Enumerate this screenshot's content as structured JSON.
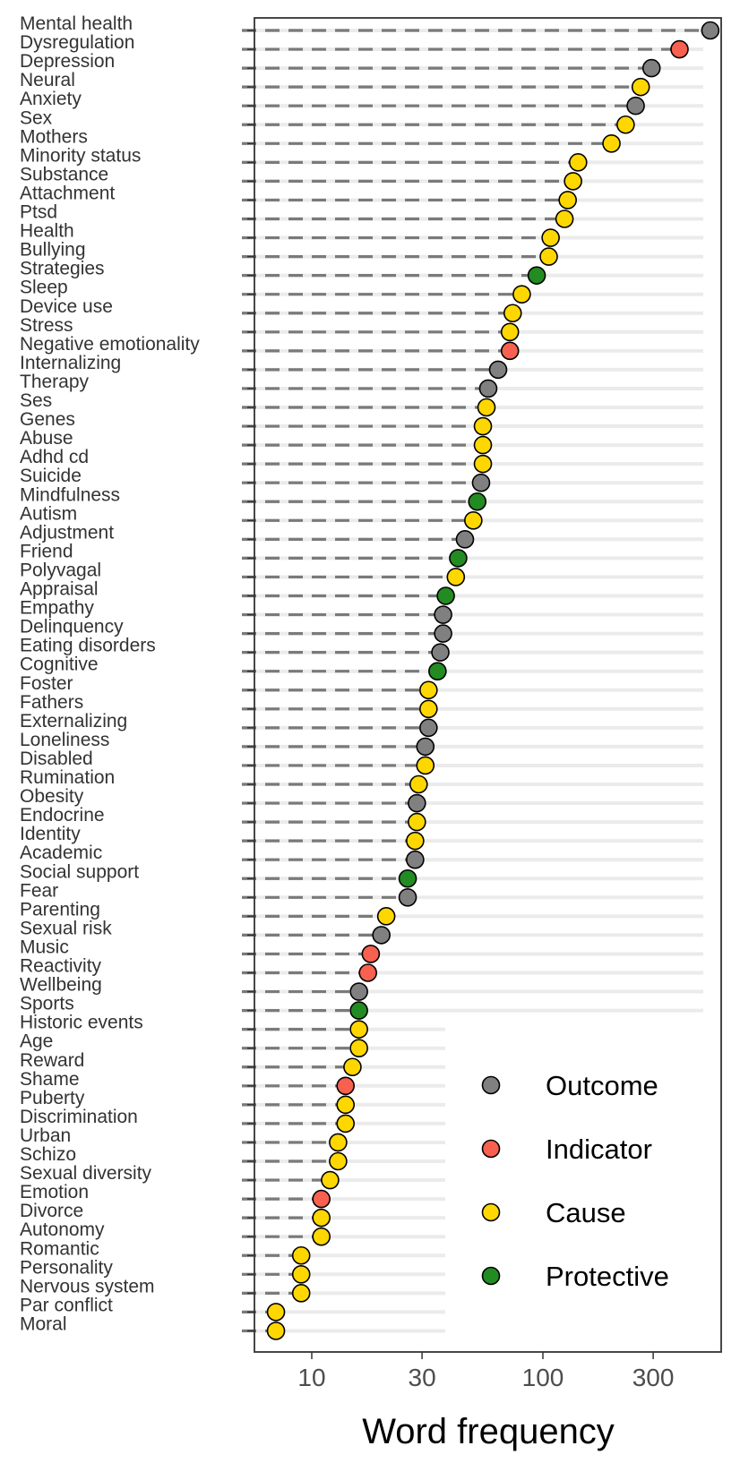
{
  "chart_data": {
    "type": "scatter",
    "subtype": "dot-plot",
    "title": "",
    "xlabel": "Word frequency",
    "ylabel": "",
    "x_scale": "log",
    "xlim": [
      6,
      620
    ],
    "x_ticks": [
      10,
      30,
      100,
      300
    ],
    "x_tick_labels": [
      "10",
      "30",
      "100",
      "300"
    ],
    "legend_position": "bottom-right",
    "colors": {
      "Outcome": "#808080",
      "Indicator": "#f8604f",
      "Cause": "#ffd700",
      "Protective": "#228b22"
    },
    "legend": [
      "Outcome",
      "Indicator",
      "Cause",
      "Protective"
    ],
    "points": [
      {
        "label": "Mental health",
        "value": 530,
        "category": "Outcome"
      },
      {
        "label": "Dysregulation",
        "value": 390,
        "category": "Indicator"
      },
      {
        "label": "Depression",
        "value": 295,
        "category": "Outcome"
      },
      {
        "label": "Neural",
        "value": 265,
        "category": "Cause"
      },
      {
        "label": "Anxiety",
        "value": 252,
        "category": "Outcome"
      },
      {
        "label": "Sex",
        "value": 228,
        "category": "Cause"
      },
      {
        "label": "Mothers",
        "value": 198,
        "category": "Cause"
      },
      {
        "label": "Minority status",
        "value": 142,
        "category": "Cause"
      },
      {
        "label": "Substance",
        "value": 135,
        "category": "Cause"
      },
      {
        "label": "Attachment",
        "value": 128,
        "category": "Cause"
      },
      {
        "label": "Ptsd",
        "value": 124,
        "category": "Cause"
      },
      {
        "label": "Health",
        "value": 108,
        "category": "Cause"
      },
      {
        "label": "Bullying",
        "value": 106,
        "category": "Cause"
      },
      {
        "label": "Strategies",
        "value": 94,
        "category": "Protective"
      },
      {
        "label": "Sleep",
        "value": 81,
        "category": "Cause"
      },
      {
        "label": "Device use",
        "value": 74,
        "category": "Cause"
      },
      {
        "label": "Stress",
        "value": 72,
        "category": "Cause"
      },
      {
        "label": "Negative emotionality",
        "value": 72,
        "category": "Indicator"
      },
      {
        "label": "Internalizing",
        "value": 64,
        "category": "Outcome"
      },
      {
        "label": "Therapy",
        "value": 58,
        "category": "Outcome"
      },
      {
        "label": "Ses",
        "value": 57,
        "category": "Cause"
      },
      {
        "label": "Genes",
        "value": 55,
        "category": "Cause"
      },
      {
        "label": "Abuse",
        "value": 55,
        "category": "Cause"
      },
      {
        "label": "Adhd cd",
        "value": 55,
        "category": "Cause"
      },
      {
        "label": "Suicide",
        "value": 54,
        "category": "Outcome"
      },
      {
        "label": "Mindfulness",
        "value": 52,
        "category": "Protective"
      },
      {
        "label": "Autism",
        "value": 50,
        "category": "Cause"
      },
      {
        "label": "Adjustment",
        "value": 46,
        "category": "Outcome"
      },
      {
        "label": "Friend",
        "value": 43,
        "category": "Protective"
      },
      {
        "label": "Polyvagal",
        "value": 42,
        "category": "Cause"
      },
      {
        "label": "Appraisal",
        "value": 38,
        "category": "Protective"
      },
      {
        "label": "Empathy",
        "value": 37,
        "category": "Outcome"
      },
      {
        "label": "Delinquency",
        "value": 37,
        "category": "Outcome"
      },
      {
        "label": "Eating disorders",
        "value": 36,
        "category": "Outcome"
      },
      {
        "label": "Cognitive",
        "value": 35,
        "category": "Protective"
      },
      {
        "label": "Foster",
        "value": 32,
        "category": "Cause"
      },
      {
        "label": "Fathers",
        "value": 32,
        "category": "Cause"
      },
      {
        "label": "Externalizing",
        "value": 32,
        "category": "Outcome"
      },
      {
        "label": "Loneliness",
        "value": 31,
        "category": "Outcome"
      },
      {
        "label": "Disabled",
        "value": 31,
        "category": "Cause"
      },
      {
        "label": "Rumination",
        "value": 29,
        "category": "Cause"
      },
      {
        "label": "Obesity",
        "value": 28.5,
        "category": "Outcome"
      },
      {
        "label": "Endocrine",
        "value": 28.5,
        "category": "Cause"
      },
      {
        "label": "Identity",
        "value": 28,
        "category": "Cause"
      },
      {
        "label": "Academic",
        "value": 28,
        "category": "Outcome"
      },
      {
        "label": "Social support",
        "value": 26,
        "category": "Protective"
      },
      {
        "label": "Fear",
        "value": 26,
        "category": "Outcome"
      },
      {
        "label": "Parenting",
        "value": 21,
        "category": "Cause"
      },
      {
        "label": "Sexual risk",
        "value": 20,
        "category": "Outcome"
      },
      {
        "label": "Music",
        "value": 18,
        "category": "Indicator"
      },
      {
        "label": "Reactivity",
        "value": 17.5,
        "category": "Indicator"
      },
      {
        "label": "Wellbeing",
        "value": 16,
        "category": "Outcome"
      },
      {
        "label": "Sports",
        "value": 16,
        "category": "Protective"
      },
      {
        "label": "Historic events",
        "value": 16,
        "category": "Cause"
      },
      {
        "label": "Age",
        "value": 16,
        "category": "Cause"
      },
      {
        "label": "Reward",
        "value": 15,
        "category": "Cause"
      },
      {
        "label": "Shame",
        "value": 14,
        "category": "Indicator"
      },
      {
        "label": "Puberty",
        "value": 14,
        "category": "Cause"
      },
      {
        "label": "Discrimination",
        "value": 14,
        "category": "Cause"
      },
      {
        "label": "Urban",
        "value": 13,
        "category": "Cause"
      },
      {
        "label": "Schizo",
        "value": 13,
        "category": "Cause"
      },
      {
        "label": "Sexual diversity",
        "value": 12,
        "category": "Cause"
      },
      {
        "label": "Emotion",
        "value": 11,
        "category": "Indicator"
      },
      {
        "label": "Divorce",
        "value": 11,
        "category": "Cause"
      },
      {
        "label": "Autonomy",
        "value": 11,
        "category": "Cause"
      },
      {
        "label": "Romantic",
        "value": 9,
        "category": "Cause"
      },
      {
        "label": "Personality",
        "value": 9,
        "category": "Cause"
      },
      {
        "label": "Nervous system",
        "value": 9,
        "category": "Cause"
      },
      {
        "label": "Par conflict",
        "value": 7,
        "category": "Cause"
      },
      {
        "label": "Moral",
        "value": 7,
        "category": "Cause"
      }
    ]
  }
}
